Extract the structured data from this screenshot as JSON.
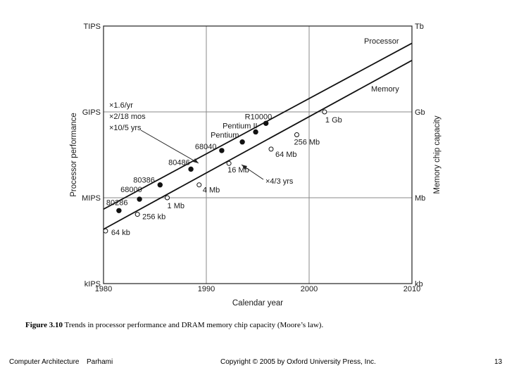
{
  "chart_data": {
    "type": "line",
    "xlabel": "Calendar year",
    "ylabel_left": "Processor performance",
    "ylabel_right": "Memory chip capacity",
    "x_ticks": [
      "1980",
      "1990",
      "2000",
      "2010"
    ],
    "xlim": [
      1980,
      2010
    ],
    "y_scale": "log",
    "ylim_log10": [
      3,
      12
    ],
    "y_ticks_left": [
      {
        "label": "kIPS",
        "log10": 3
      },
      {
        "label": "MIPS",
        "log10": 6
      },
      {
        "label": "GIPS",
        "log10": 9
      },
      {
        "label": "TIPS",
        "log10": 12
      }
    ],
    "y_ticks_right": [
      {
        "label": "kb",
        "log10": 3
      },
      {
        "label": "Mb",
        "log10": 6
      },
      {
        "label": "Gb",
        "log10": 9
      },
      {
        "label": "Tb",
        "log10": 12
      }
    ],
    "grid": true,
    "series": [
      {
        "name": "Processor",
        "trend": [
          [
            1980,
            5.6
          ],
          [
            2010,
            11.4
          ]
        ],
        "points": [
          {
            "label": "80286",
            "x": 1981.5,
            "log10": 5.55
          },
          {
            "label": "68000",
            "x": 1983.5,
            "log10": 5.95
          },
          {
            "label": "80386",
            "x": 1985.5,
            "log10": 6.45
          },
          {
            "label": "80486",
            "x": 1988.5,
            "log10": 7.0
          },
          {
            "label": "68040",
            "x": 1991.5,
            "log10": 7.65
          },
          {
            "label": "Pentium",
            "x": 1993.5,
            "log10": 7.95
          },
          {
            "label": "Pentium II",
            "x": 1994.8,
            "log10": 8.3
          },
          {
            "label": "R10000",
            "x": 1995.8,
            "log10": 8.6
          }
        ]
      },
      {
        "name": "Memory",
        "trend": [
          [
            1980,
            4.9
          ],
          [
            2010,
            10.8
          ]
        ],
        "points": [
          {
            "label": "64 kb",
            "x": 1980.2,
            "log10": 4.84
          },
          {
            "label": "256 kb",
            "x": 1983.3,
            "log10": 5.42
          },
          {
            "label": "1 Mb",
            "x": 1986.2,
            "log10": 6.0
          },
          {
            "label": "4 Mb",
            "x": 1989.3,
            "log10": 6.45
          },
          {
            "label": "16 Mb",
            "x": 1992.2,
            "log10": 7.2
          },
          {
            "label": "64 Mb",
            "x": 1996.3,
            "log10": 7.7
          },
          {
            "label": "256 Mb",
            "x": 1998.8,
            "log10": 8.2
          },
          {
            "label": "1 Gb",
            "x": 2001.5,
            "log10": 9.0
          }
        ]
      }
    ],
    "annotations": {
      "processor_rates": [
        "×1.6/yr",
        "×2/18 mos",
        "×10/5 yrs"
      ],
      "memory_rate": "×4/3 yrs"
    }
  },
  "caption": {
    "label": "Figure 3.10",
    "text": "Trends in processor performance and DRAM memory chip capacity (Moore’s law)."
  },
  "footer": {
    "course": "Computer Architecture",
    "author": "Parhami",
    "copyright": "Copyright © 2005 by Oxford University Press, Inc.",
    "page": "13"
  }
}
